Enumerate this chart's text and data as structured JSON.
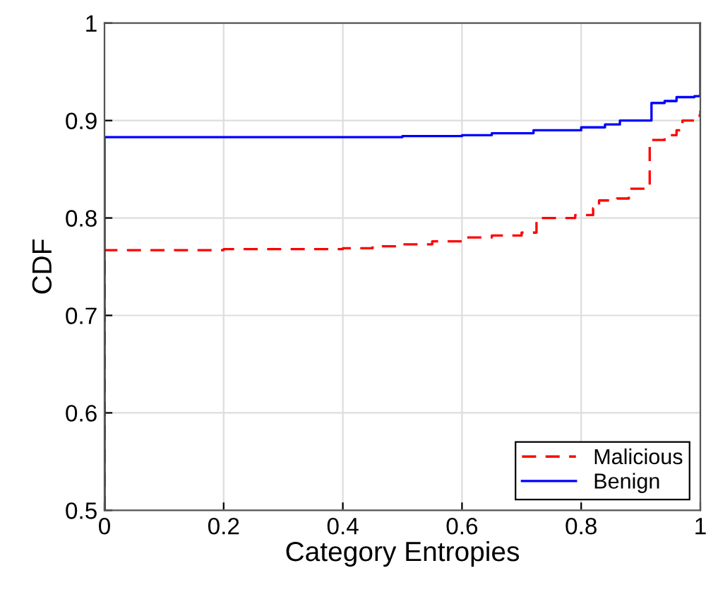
{
  "chart_data": {
    "type": "step",
    "xlabel": "Category Entropies",
    "ylabel": "CDF",
    "xlim": [
      0,
      1
    ],
    "ylim": [
      0.5,
      1
    ],
    "xticks": [
      0,
      0.2,
      0.4,
      0.6,
      0.8,
      1
    ],
    "yticks": [
      0.5,
      0.6,
      0.7,
      0.8,
      0.9,
      1
    ],
    "grid": true,
    "legend": "bottom right",
    "series": [
      {
        "name": "Malicious",
        "color": "#ff0000",
        "line_style": "dashed",
        "x": [
          0,
          0,
          0.2,
          0.4,
          0.45,
          0.5,
          0.55,
          0.6,
          0.65,
          0.7,
          0.725,
          0.79,
          0.82,
          0.83,
          0.86,
          0.88,
          0.915,
          0.94,
          0.96,
          0.97,
          0.99,
          1
        ],
        "values": [
          0.5,
          0.767,
          0.768,
          0.769,
          0.771,
          0.773,
          0.776,
          0.78,
          0.782,
          0.785,
          0.8,
          0.803,
          0.81,
          0.818,
          0.82,
          0.83,
          0.88,
          0.885,
          0.89,
          0.9,
          0.905,
          0.91
        ]
      },
      {
        "name": "Benign",
        "color": "#0000ff",
        "line_style": "solid",
        "x": [
          0,
          0,
          0.5,
          0.6,
          0.65,
          0.72,
          0.8,
          0.84,
          0.865,
          0.918,
          0.94,
          0.96,
          0.99,
          1
        ],
        "values": [
          0.5,
          0.883,
          0.884,
          0.885,
          0.887,
          0.89,
          0.893,
          0.896,
          0.9,
          0.918,
          0.92,
          0.924,
          0.925,
          1
        ]
      }
    ]
  }
}
